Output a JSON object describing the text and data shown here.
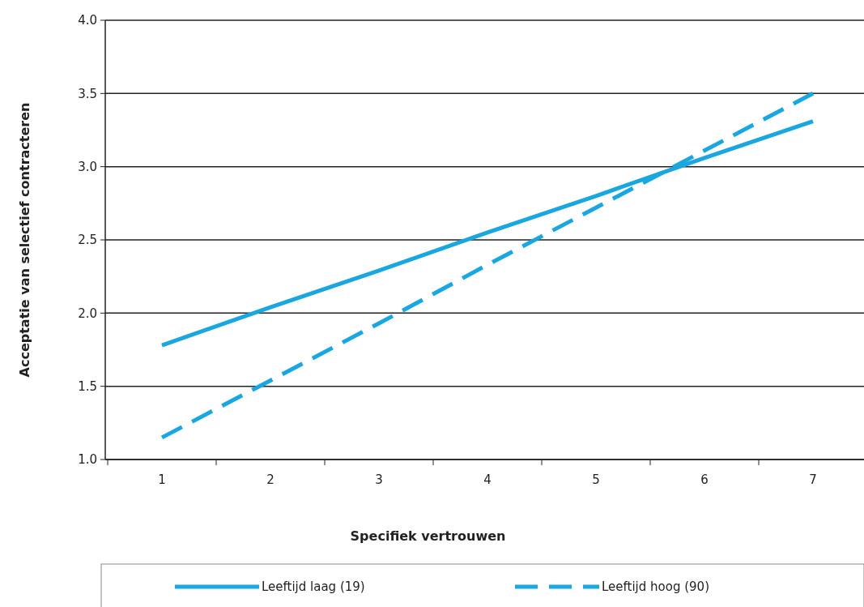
{
  "chart_data": {
    "type": "line",
    "xlabel": "Specifiek vertrouwen",
    "ylabel": "Acceptatie van selectief contracteren",
    "categories": [
      "1",
      "2",
      "3",
      "4",
      "5",
      "6",
      "7"
    ],
    "series": [
      {
        "name": "Leeftijd laag (19)",
        "color": "#1aa7e0",
        "line_style": "solid",
        "values": [
          1.78,
          2.04,
          2.29,
          2.55,
          2.8,
          3.06,
          3.31
        ]
      },
      {
        "name": "Leeftijd hoog (90)",
        "color": "#1aa7e0",
        "line_style": "dashed",
        "values": [
          1.15,
          1.54,
          1.93,
          2.33,
          2.72,
          3.11,
          3.5
        ]
      }
    ],
    "ylim": [
      1.0,
      4.0
    ],
    "yticks": [
      {
        "value": 1,
        "label": "1.0"
      },
      {
        "value": 1.5,
        "label": "1.5"
      },
      {
        "value": 2,
        "label": "2.0"
      },
      {
        "value": 2.5,
        "label": "2.5"
      },
      {
        "value": 3,
        "label": "3.0"
      },
      {
        "value": 3.5,
        "label": "3.5"
      },
      {
        "value": 4,
        "label": "4.0"
      }
    ],
    "grid": "y",
    "legend": "bottom",
    "marker": "none"
  }
}
